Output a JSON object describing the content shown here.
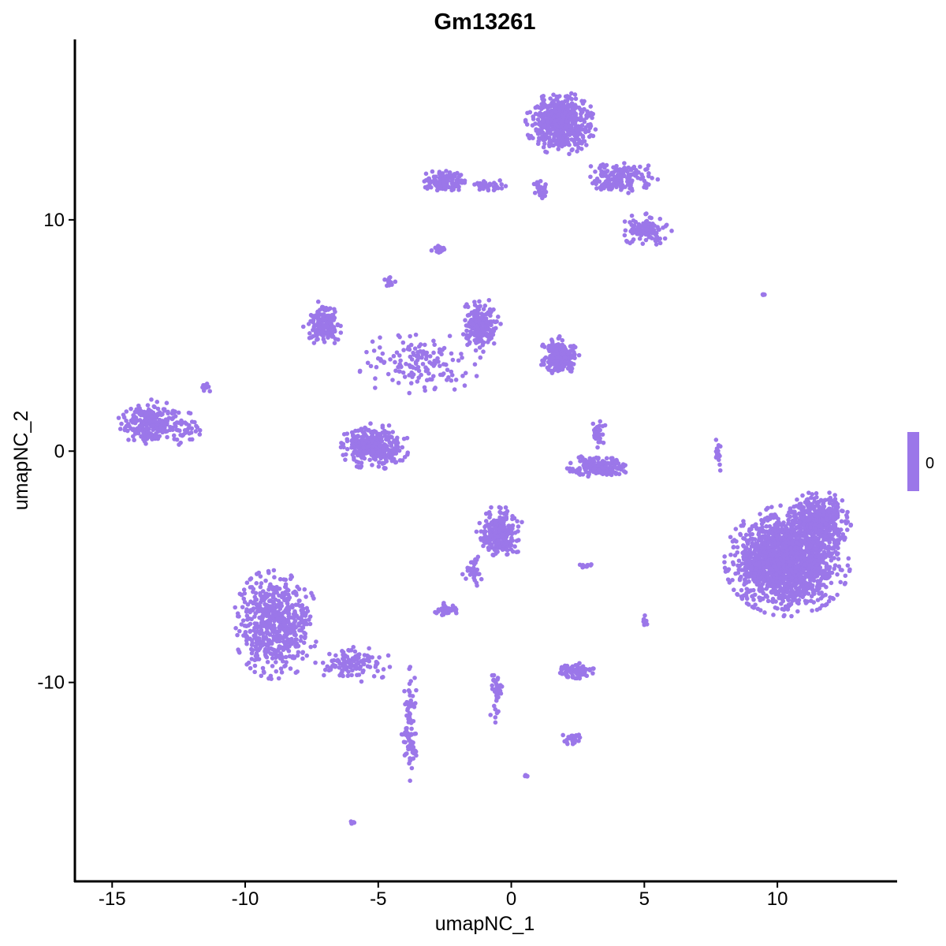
{
  "chart_data": {
    "type": "scatter",
    "title": "Gm13261",
    "xlabel": "umapNC_1",
    "ylabel": "umapNC_2",
    "xlim": [
      -16.4,
      14.5
    ],
    "ylim": [
      -18.6,
      17.8
    ],
    "xticks": [
      -15,
      -10,
      -5,
      0,
      5,
      10
    ],
    "yticks": [
      -10,
      0,
      10
    ],
    "grid": false,
    "point_color": "#9B77E9",
    "legend": {
      "position": "right",
      "labels": [
        "0"
      ],
      "color": "#9B77E9"
    },
    "clusters": [
      {
        "center": [
          1.86,
          14.17
        ],
        "spread": [
          1.33,
          1.36
        ],
        "n": 500
      },
      {
        "center": [
          4.17,
          11.79
        ],
        "spread": [
          1.5,
          0.85
        ],
        "n": 150
      },
      {
        "center": [
          5.03,
          9.57
        ],
        "spread": [
          1.0,
          0.7
        ],
        "n": 120
      },
      {
        "center": [
          -2.49,
          11.69
        ],
        "spread": [
          0.9,
          0.5
        ],
        "n": 120
      },
      {
        "center": [
          -0.86,
          11.45
        ],
        "spread": [
          1.2,
          0.27
        ],
        "n": 40
      },
      {
        "center": [
          1.07,
          11.28
        ],
        "spread": [
          0.3,
          0.5
        ],
        "n": 30
      },
      {
        "center": [
          -2.78,
          8.72
        ],
        "spread": [
          0.3,
          0.2
        ],
        "n": 15
      },
      {
        "center": [
          -4.56,
          7.36
        ],
        "spread": [
          0.2,
          0.3
        ],
        "n": 15
      },
      {
        "center": [
          -7.07,
          5.49
        ],
        "spread": [
          0.75,
          1.0
        ],
        "n": 150
      },
      {
        "center": [
          -1.15,
          5.49
        ],
        "spread": [
          0.75,
          1.2
        ],
        "n": 200
      },
      {
        "center": [
          1.8,
          4.12
        ],
        "spread": [
          0.75,
          0.85
        ],
        "n": 200
      },
      {
        "center": [
          -3.52,
          3.78
        ],
        "spread": [
          2.4,
          1.4
        ],
        "n": 150
      },
      {
        "center": [
          -13.58,
          1.23
        ],
        "spread": [
          1.2,
          1.0
        ],
        "n": 250
      },
      {
        "center": [
          -12.25,
          1.06
        ],
        "spread": [
          0.6,
          0.85
        ],
        "n": 40
      },
      {
        "center": [
          -11.45,
          2.76
        ],
        "spread": [
          0.2,
          0.3
        ],
        "n": 10
      },
      {
        "center": [
          -5.15,
          0.2
        ],
        "spread": [
          1.33,
          1.0
        ],
        "n": 350
      },
      {
        "center": [
          3.28,
          -0.65
        ],
        "spread": [
          1.2,
          0.5
        ],
        "n": 150
      },
      {
        "center": [
          3.28,
          0.72
        ],
        "spread": [
          0.3,
          0.7
        ],
        "n": 30
      },
      {
        "center": [
          10.38,
          -4.74
        ],
        "spread": [
          2.37,
          2.4
        ],
        "n": 1500
      },
      {
        "center": [
          11.57,
          -3.03
        ],
        "spread": [
          1.2,
          1.3
        ],
        "n": 400
      },
      {
        "center": [
          -0.41,
          -3.54
        ],
        "spread": [
          0.9,
          1.2
        ],
        "n": 250
      },
      {
        "center": [
          -1.45,
          -5.08
        ],
        "spread": [
          0.4,
          0.8
        ],
        "n": 30
      },
      {
        "center": [
          -8.85,
          -7.46
        ],
        "spread": [
          1.6,
          2.4
        ],
        "n": 600
      },
      {
        "center": [
          -5.89,
          -9.17
        ],
        "spread": [
          1.5,
          0.85
        ],
        "n": 120
      },
      {
        "center": [
          -3.82,
          -11.89
        ],
        "spread": [
          0.3,
          2.7
        ],
        "n": 80
      },
      {
        "center": [
          -0.56,
          -10.53
        ],
        "spread": [
          0.3,
          1.4
        ],
        "n": 40
      },
      {
        "center": [
          2.4,
          -9.51
        ],
        "spread": [
          0.75,
          0.35
        ],
        "n": 80
      },
      {
        "center": [
          -2.4,
          -6.85
        ],
        "spread": [
          0.5,
          0.3
        ],
        "n": 40
      },
      {
        "center": [
          2.25,
          -12.47
        ],
        "spread": [
          0.4,
          0.3
        ],
        "n": 25
      },
      {
        "center": [
          7.78,
          0.03
        ],
        "spread": [
          0.15,
          1.0
        ],
        "n": 15
      },
      {
        "center": [
          2.84,
          -4.94
        ],
        "spread": [
          0.3,
          0.1
        ],
        "n": 10
      },
      {
        "center": [
          5.06,
          -7.29
        ],
        "spread": [
          0.15,
          0.35
        ],
        "n": 10
      },
      {
        "center": [
          -6.0,
          -16.08
        ],
        "spread": [
          0.1,
          0.1
        ],
        "n": 5
      },
      {
        "center": [
          9.44,
          6.78
        ],
        "spread": [
          0.2,
          0.05
        ],
        "n": 5
      },
      {
        "center": [
          0.56,
          -14.04
        ],
        "spread": [
          0.1,
          0.05
        ],
        "n": 5
      }
    ]
  }
}
